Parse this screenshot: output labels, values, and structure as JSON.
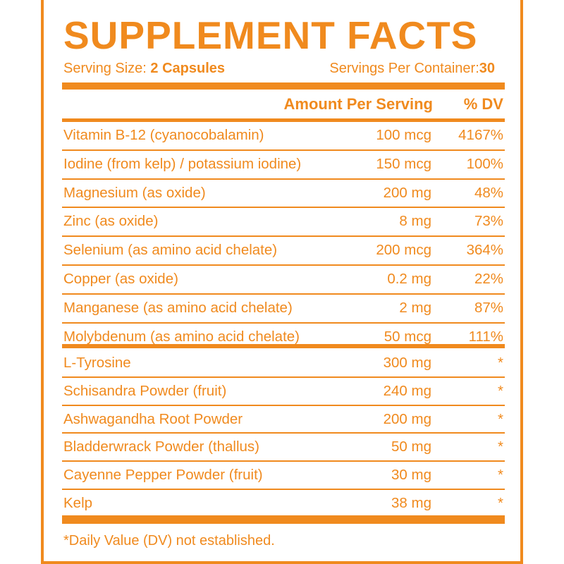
{
  "label": {
    "title": "SUPPLEMENT FACTS",
    "serving_size_label": "Serving Size:",
    "serving_size_value": "2 Capsules",
    "servings_label": "Servings Per Container:",
    "servings_value": "30",
    "header_amount": "Amount Per Serving",
    "header_dv": "% DV",
    "nutrients": [
      {
        "name": "Vitamin B-12 (cyanocobalamin)",
        "amount": "100 mcg",
        "dv": "4167%"
      },
      {
        "name": "Iodine (from kelp) / potassium iodine)",
        "amount": "150 mcg",
        "dv": "100%"
      },
      {
        "name": "Magnesium (as oxide)",
        "amount": "200 mg",
        "dv": "48%"
      },
      {
        "name": "Zinc (as oxide)",
        "amount": "8 mg",
        "dv": "73%"
      },
      {
        "name": "Selenium (as amino acid chelate)",
        "amount": "200 mcg",
        "dv": "364%"
      },
      {
        "name": "Copper (as oxide)",
        "amount": "0.2 mg",
        "dv": "22%"
      },
      {
        "name": "Manganese (as amino acid chelate)",
        "amount": "2 mg",
        "dv": "87%"
      },
      {
        "name": "Molybdenum (as amino acid chelate)",
        "amount": "50 mcg",
        "dv": "111%"
      }
    ],
    "other_ingredients": [
      {
        "name": "L-Tyrosine",
        "amount": "300 mg",
        "dv": "*"
      },
      {
        "name": "Schisandra Powder (fruit)",
        "amount": "240 mg",
        "dv": "*"
      },
      {
        "name": "Ashwagandha Root Powder",
        "amount": "200 mg",
        "dv": "*"
      },
      {
        "name": "Bladderwrack Powder (thallus)",
        "amount": "50 mg",
        "dv": "*"
      },
      {
        "name": "Cayenne Pepper Powder (fruit)",
        "amount": "30 mg",
        "dv": "*"
      },
      {
        "name": "Kelp",
        "amount": "38 mg",
        "dv": "*"
      }
    ],
    "footnote": "*Daily Value (DV) not established."
  },
  "colors": {
    "accent": "#f08a1e",
    "background": "#ffffff"
  }
}
